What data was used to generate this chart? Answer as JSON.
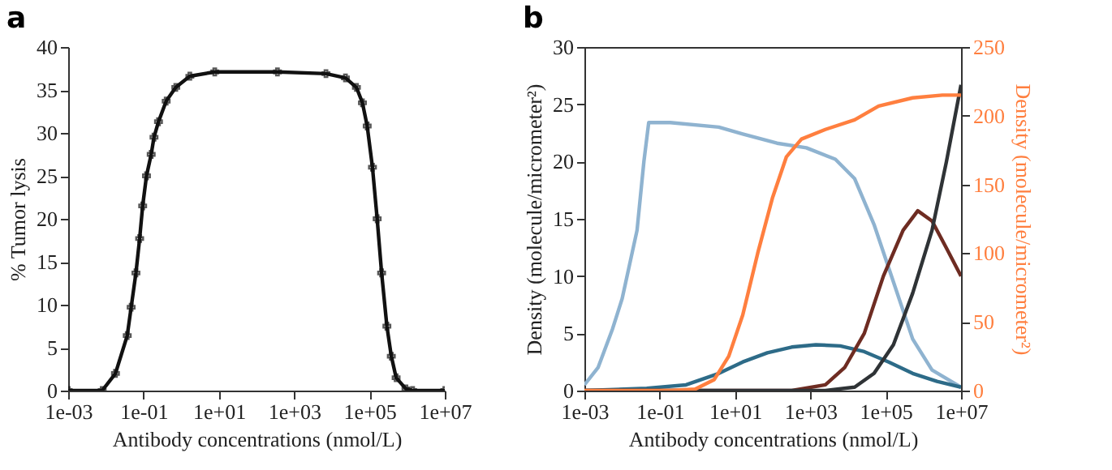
{
  "chart_data": [
    {
      "type": "line",
      "title": "a",
      "xlabel": "Antibody concentrations (nmol/L)",
      "ylabel": "% Tumor lysis",
      "log": "x",
      "marker": "cross",
      "xlim": [
        0.001,
        10000000
      ],
      "ylim": [
        0,
        40
      ],
      "xticks": [
        {
          "value": 0.001,
          "label": "1e-03"
        },
        {
          "value": 0.1,
          "label": "1e-01"
        },
        {
          "value": 10,
          "label": "1e+01"
        },
        {
          "value": 1000,
          "label": "1e+03"
        },
        {
          "value": 100000,
          "label": "1e+05"
        },
        {
          "value": 10000000,
          "label": "1e+07"
        }
      ],
      "yticks": [
        0,
        5,
        10,
        15,
        20,
        25,
        30,
        35,
        40
      ],
      "series": [
        {
          "color": "#111111",
          "x": [
            0.001,
            0.008,
            0.018,
            0.037,
            0.047,
            0.063,
            0.079,
            0.095,
            0.12,
            0.16,
            0.19,
            0.25,
            0.4,
            0.72,
            1.7,
            7.8,
            360,
            7000,
            23000,
            45000,
            65000,
            87000,
            120000,
            160000,
            210000,
            290000,
            380000,
            510000,
            930000,
            1400000,
            10000000
          ],
          "values": [
            0,
            0,
            2,
            6.4,
            9.7,
            13.7,
            17.7,
            21.5,
            25,
            27.5,
            29.5,
            31.3,
            33.7,
            35.3,
            36.6,
            37.1,
            37.1,
            36.9,
            36.4,
            35.3,
            33.5,
            30.8,
            26,
            20,
            13.7,
            7.5,
            4,
            1.5,
            0.2,
            0,
            0
          ]
        }
      ]
    },
    {
      "type": "line",
      "title": "b",
      "xlabel": "Antibody concentrations (nmol/L)",
      "ylabel": "Density (molecule/micrometer²)",
      "y2label": "Density (molecule/micrometer²)",
      "log": "x",
      "xlim": [
        0.001,
        10000000
      ],
      "ylim": [
        0,
        30
      ],
      "y2lim": [
        0,
        250
      ],
      "xticks": [
        {
          "value": 0.001,
          "label": "1e-03"
        },
        {
          "value": 0.1,
          "label": "1e-01"
        },
        {
          "value": 10,
          "label": "1e+01"
        },
        {
          "value": 1000,
          "label": "1e+03"
        },
        {
          "value": 100000,
          "label": "1e+05"
        },
        {
          "value": 10000000,
          "label": "1e+07"
        }
      ],
      "yticks": [
        0,
        5,
        10,
        15,
        20,
        25,
        30
      ],
      "y2ticks": [
        0,
        50,
        100,
        150,
        200,
        250
      ],
      "series": [
        {
          "color": "#8fb3d0",
          "x": [
            0.001,
            0.0023,
            0.0056,
            0.01,
            0.025,
            0.038,
            0.051,
            0.19,
            3.7,
            16,
            130,
            780,
            4600,
            15000,
            49000,
            160000,
            520000,
            1700000,
            10000000
          ],
          "values": [
            0.5,
            2,
            5.4,
            8,
            14,
            20,
            23.4,
            23.4,
            23,
            22.4,
            21.6,
            21.2,
            20.2,
            18.5,
            14.5,
            9.5,
            4.5,
            1.8,
            0.3
          ]
        },
        {
          "color": "#2d6b88",
          "x": [
            0.001,
            0.045,
            0.5,
            3.7,
            16,
            72,
            320,
            1400,
            6200,
            27000,
            120000,
            520000,
            2300000,
            10000000
          ],
          "values": [
            0,
            0.2,
            0.5,
            1.5,
            2.5,
            3.3,
            3.8,
            4.0,
            3.9,
            3.4,
            2.5,
            1.5,
            0.8,
            0.3
          ]
        },
        {
          "color": "#ff7f3f",
          "axis": "y2",
          "x": [
            0.001,
            0.19,
            0.87,
            2.8,
            6.8,
            16,
            40,
            98,
            230,
            580,
            2500,
            15000,
            65000,
            520000,
            3200000,
            10000000
          ],
          "values": [
            0,
            0,
            1,
            8,
            25,
            55,
            100,
            140,
            170,
            183,
            190,
            197,
            207,
            213,
            215,
            215
          ]
        },
        {
          "color": "#6e2c22",
          "x": [
            0.001,
            320,
            2500,
            8100,
            27000,
            87000,
            290000,
            710000,
            1700000,
            4000000,
            10000000
          ],
          "values": [
            0,
            0,
            0.5,
            2,
            5,
            10,
            14,
            15.7,
            14.8,
            12.5,
            10
          ]
        },
        {
          "color": "#2f3336",
          "x": [
            0.001,
            2500,
            15000,
            49000,
            160000,
            520000,
            1700000,
            4100000,
            10000000
          ],
          "values": [
            0,
            0,
            0.3,
            1.5,
            4,
            8.5,
            14,
            20,
            26.7
          ]
        }
      ]
    }
  ]
}
